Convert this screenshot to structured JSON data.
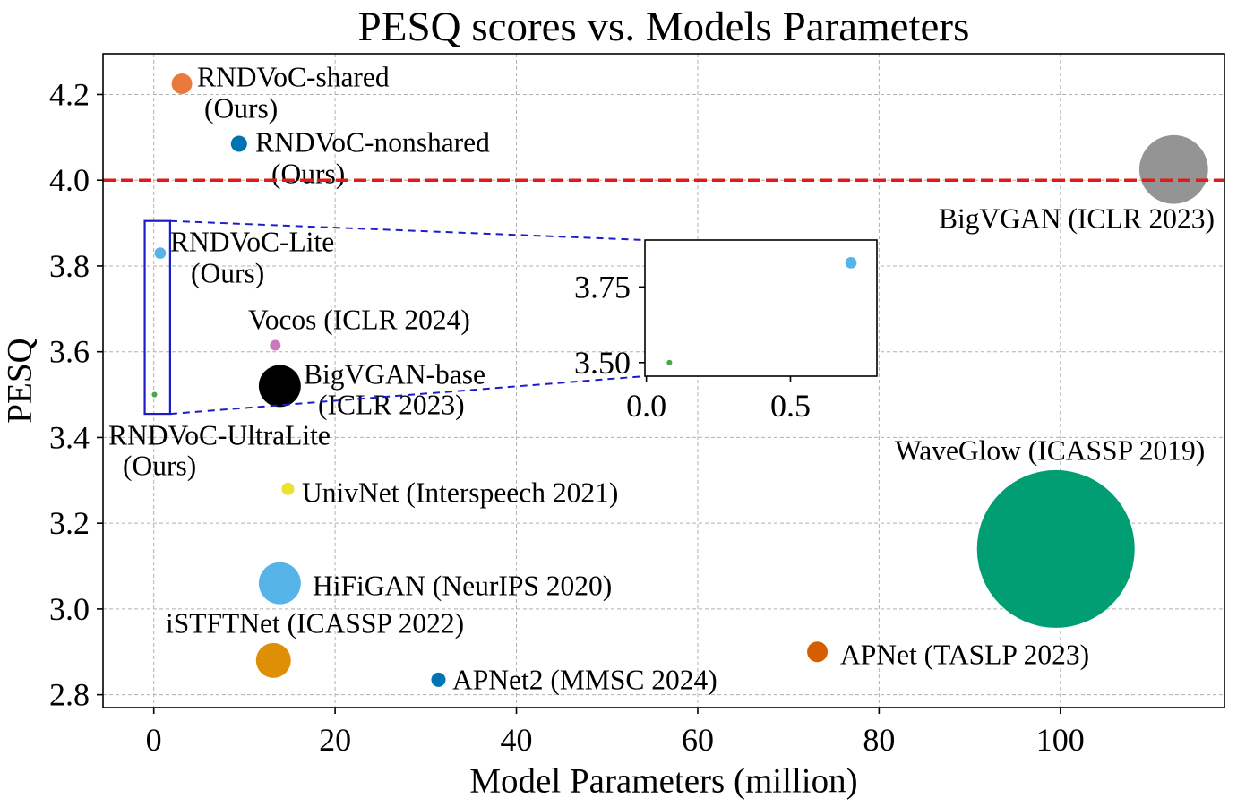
{
  "chart_data": {
    "type": "scatter",
    "title": "PESQ scores vs. Models Parameters",
    "xlabel": "Model Parameters (million)",
    "ylabel": "PESQ",
    "xlim": [
      -5.6,
      118.1
    ],
    "ylim": [
      2.77,
      4.295
    ],
    "xticks": [
      0,
      20,
      40,
      60,
      80,
      100
    ],
    "xtick_labels": [
      "0",
      "20",
      "40",
      "60",
      "80",
      "100"
    ],
    "yticks": [
      2.8,
      3.0,
      3.2,
      3.4,
      3.6,
      3.8,
      4.0,
      4.2
    ],
    "ytick_labels": [
      "2.8",
      "3.0",
      "3.2",
      "3.4",
      "3.6",
      "3.8",
      "4.0",
      "4.2"
    ],
    "grid": true,
    "reference_line": {
      "y": 4.0,
      "color": "#E31A1C",
      "style": "dashed"
    },
    "points": [
      {
        "label": [
          "RNDVoC-shared",
          "(Ours)"
        ],
        "x": 3.1,
        "y": 4.225,
        "size": 0.017,
        "color": "#EA7A3C"
      },
      {
        "label": [
          "RNDVoC-nonshared",
          "(Ours)"
        ],
        "x": 9.4,
        "y": 4.085,
        "size": 0.0105,
        "color": "#0173B2"
      },
      {
        "label": [
          "RNDVoC-Lite",
          "(Ours)"
        ],
        "x": 0.71,
        "y": 3.83,
        "size": 0.0052,
        "color": "#56B4E9"
      },
      {
        "label": [
          "RNDVoC-UltraLite",
          "(Ours)"
        ],
        "x": 0.08,
        "y": 3.5,
        "size": 0.0012,
        "color": "#4CA64C"
      },
      {
        "label": [
          "Vocos (ICLR 2024)"
        ],
        "x": 13.4,
        "y": 3.615,
        "size": 0.0046,
        "color": "#CC78BC"
      },
      {
        "label": [
          "BigVGAN-base",
          "(ICLR 2023)"
        ],
        "x": 13.9,
        "y": 3.52,
        "size": 0.071,
        "color": "#000000"
      },
      {
        "label": [
          "UnivNet (Interspeech 2021)"
        ],
        "x": 14.8,
        "y": 3.28,
        "size": 0.0063,
        "color": "#ECE133"
      },
      {
        "label": [
          "HiFiGAN (NeurIPS 2020)"
        ],
        "x": 13.9,
        "y": 3.06,
        "size": 0.071,
        "color": "#56B4E9"
      },
      {
        "label": [
          "iSTFTNet (ICASSP 2022)"
        ],
        "x": 13.2,
        "y": 2.88,
        "size": 0.049,
        "color": "#DE8F05"
      },
      {
        "label": [
          "APNet2 (MMSC 2024)"
        ],
        "x": 31.4,
        "y": 2.835,
        "size": 0.0083,
        "color": "#0173B2"
      },
      {
        "label": [
          "APNet (TASLP 2023)"
        ],
        "x": 73.2,
        "y": 2.9,
        "size": 0.017,
        "color": "#D55E00"
      },
      {
        "label": [
          "WaveGlow (ICASSP 2019)"
        ],
        "x": 99.5,
        "y": 3.14,
        "size": 1.0,
        "color": "#029E73"
      },
      {
        "label": [
          "BigVGAN (ICLR 2023)"
        ],
        "x": 112.5,
        "y": 4.025,
        "size": 0.19,
        "color": "#949494"
      }
    ],
    "zoom": {
      "color": "#1C1CC8",
      "region": {
        "x": [
          -1.0,
          1.8
        ],
        "y": [
          3.455,
          3.905
        ]
      },
      "inset": {
        "xlim": [
          -0.005,
          0.8
        ],
        "ylim": [
          3.455,
          3.905
        ],
        "xticks": [
          0.0,
          0.5
        ],
        "xtick_labels": [
          "0.0",
          "0.5"
        ],
        "yticks": [
          3.5,
          3.75
        ],
        "ytick_labels": [
          "3.50",
          "3.75"
        ]
      }
    }
  }
}
